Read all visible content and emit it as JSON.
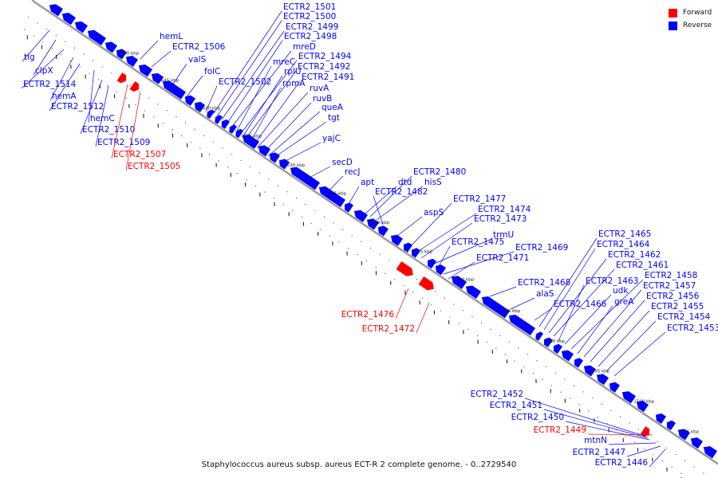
{
  "caption": "Staphylococcus aureus subsp. aureus ECT-R 2 complete genome. - 0..2729540",
  "legend": [
    {
      "label": "Forward",
      "color": "#ff0000"
    },
    {
      "label": "Reverse",
      "color": "#0000ff"
    }
  ],
  "colors": {
    "forward": "#ff0000",
    "reverse": "#0000ff",
    "backbone": "#888888"
  },
  "scale_labels": [
    "1650 kbp",
    "1645 kbp",
    "1640 kbp",
    "1635 kbp",
    "1630 kbp",
    "1625 kbp",
    "1620 kbp",
    "1615 kbp",
    "1610 kbp",
    "1605 kbp",
    "1600 kbp",
    "1595 kbp",
    "1590 kbp",
    "1585 kbp"
  ],
  "gene_labels": [
    {
      "text": "tig",
      "strand": "reverse"
    },
    {
      "text": "clpX",
      "strand": "reverse"
    },
    {
      "text": "ECTR2_1514",
      "strand": "reverse"
    },
    {
      "text": "hemA",
      "strand": "reverse"
    },
    {
      "text": "ECTR2_1512",
      "strand": "reverse"
    },
    {
      "text": "hemC",
      "strand": "reverse"
    },
    {
      "text": "ECTR2_1510",
      "strand": "reverse"
    },
    {
      "text": "ECTR2_1509",
      "strand": "reverse"
    },
    {
      "text": "ECTR2_1507",
      "strand": "forward"
    },
    {
      "text": "ECTR2_1505",
      "strand": "forward"
    },
    {
      "text": "hemL",
      "strand": "reverse"
    },
    {
      "text": "ECTR2_1506",
      "strand": "reverse"
    },
    {
      "text": "valS",
      "strand": "reverse"
    },
    {
      "text": "folC",
      "strand": "reverse"
    },
    {
      "text": "ECTR2_1502",
      "strand": "reverse"
    },
    {
      "text": "ECTR2_1501",
      "strand": "reverse"
    },
    {
      "text": "ECTR2_1500",
      "strand": "reverse"
    },
    {
      "text": "ECTR2_1499",
      "strand": "reverse"
    },
    {
      "text": "ECTR2_1498",
      "strand": "reverse"
    },
    {
      "text": "mreD",
      "strand": "reverse"
    },
    {
      "text": "mreC",
      "strand": "reverse"
    },
    {
      "text": "ECTR2_1494",
      "strand": "reverse"
    },
    {
      "text": "rplU",
      "strand": "reverse"
    },
    {
      "text": "ECTR2_1492",
      "strand": "reverse"
    },
    {
      "text": "rpmA",
      "strand": "reverse"
    },
    {
      "text": "ECTR2_1491",
      "strand": "reverse"
    },
    {
      "text": "ruvA",
      "strand": "reverse"
    },
    {
      "text": "ruvB",
      "strand": "reverse"
    },
    {
      "text": "queA",
      "strand": "reverse"
    },
    {
      "text": "tgt",
      "strand": "reverse"
    },
    {
      "text": "yajC",
      "strand": "reverse"
    },
    {
      "text": "secD",
      "strand": "reverse"
    },
    {
      "text": "recJ",
      "strand": "reverse"
    },
    {
      "text": "apt",
      "strand": "reverse"
    },
    {
      "text": "dtd",
      "strand": "reverse"
    },
    {
      "text": "ECTR2_1480",
      "strand": "reverse"
    },
    {
      "text": "hisS",
      "strand": "reverse"
    },
    {
      "text": "ECTR2_1482",
      "strand": "reverse"
    },
    {
      "text": "aspS",
      "strand": "reverse"
    },
    {
      "text": "ECTR2_1477",
      "strand": "reverse"
    },
    {
      "text": "ECTR2_1474",
      "strand": "reverse"
    },
    {
      "text": "ECTR2_1473",
      "strand": "reverse"
    },
    {
      "text": "trmU",
      "strand": "reverse"
    },
    {
      "text": "ECTR2_1475",
      "strand": "reverse"
    },
    {
      "text": "ECTR2_1469",
      "strand": "reverse"
    },
    {
      "text": "ECTR2_1471",
      "strand": "reverse"
    },
    {
      "text": "ECTR2_1476",
      "strand": "forward"
    },
    {
      "text": "ECTR2_1472",
      "strand": "forward"
    },
    {
      "text": "ECTR2_1468",
      "strand": "reverse"
    },
    {
      "text": "alaS",
      "strand": "reverse"
    },
    {
      "text": "ECTR2_1466",
      "strand": "reverse"
    },
    {
      "text": "ECTR2_1465",
      "strand": "reverse"
    },
    {
      "text": "ECTR2_1464",
      "strand": "reverse"
    },
    {
      "text": "ECTR2_1462",
      "strand": "reverse"
    },
    {
      "text": "ECTR2_1461",
      "strand": "reverse"
    },
    {
      "text": "ECTR2_1463",
      "strand": "reverse"
    },
    {
      "text": "udk",
      "strand": "reverse"
    },
    {
      "text": "ECTR2_1458",
      "strand": "reverse"
    },
    {
      "text": "greA",
      "strand": "reverse"
    },
    {
      "text": "ECTR2_1457",
      "strand": "reverse"
    },
    {
      "text": "ECTR2_1456",
      "strand": "reverse"
    },
    {
      "text": "ECTR2_1455",
      "strand": "reverse"
    },
    {
      "text": "ECTR2_1454",
      "strand": "reverse"
    },
    {
      "text": "ECTR2_1453",
      "strand": "reverse"
    },
    {
      "text": "ECTR2_1452",
      "strand": "reverse"
    },
    {
      "text": "ECTR2_1451",
      "strand": "reverse"
    },
    {
      "text": "ECTR2_1450",
      "strand": "reverse"
    },
    {
      "text": "ECTR2_1449",
      "strand": "forward"
    },
    {
      "text": "mtnN",
      "strand": "reverse"
    },
    {
      "text": "ECTR2_1447",
      "strand": "reverse"
    },
    {
      "text": "ECTR2_1446",
      "strand": "reverse"
    }
  ]
}
